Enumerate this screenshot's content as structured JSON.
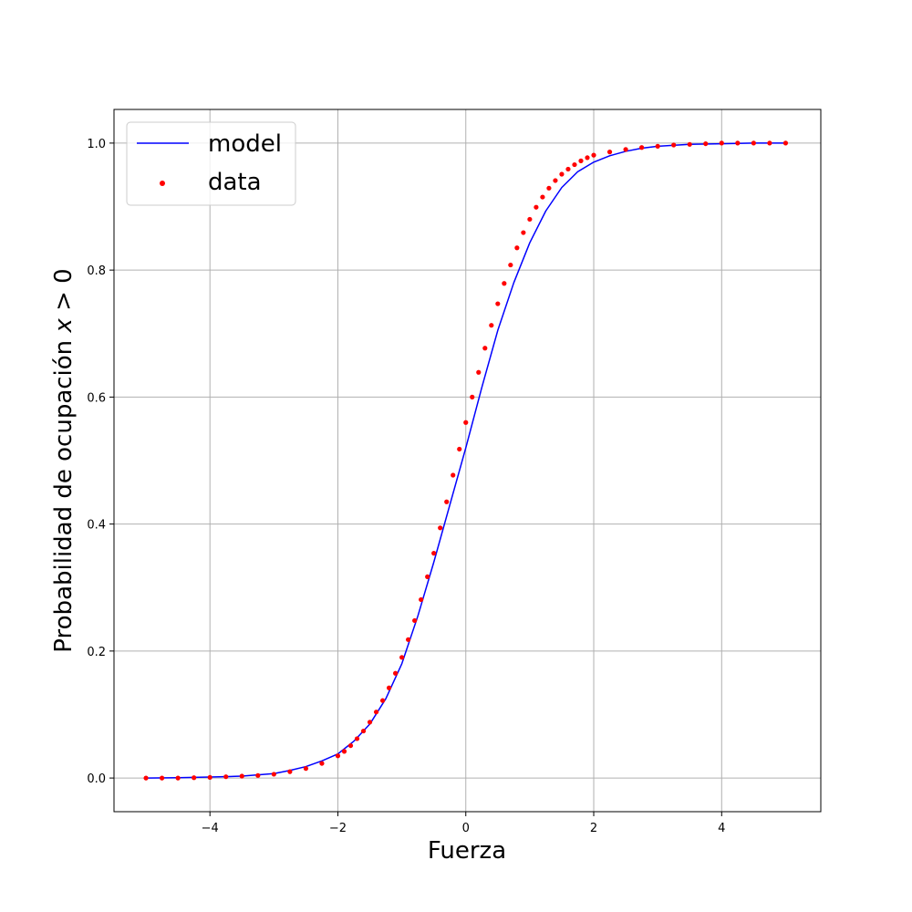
{
  "chart_data": {
    "type": "scatter",
    "title": "",
    "xlabel": "Fuerza",
    "ylabel_prefix": "Probabilidad de ocupación ",
    "ylabel_var": "x",
    "ylabel_suffix": " > 0",
    "xlim": [
      -5.5,
      5.55
    ],
    "ylim": [
      -0.053,
      1.053
    ],
    "x_ticks": [
      -4,
      -2,
      0,
      2,
      4
    ],
    "x_tick_labels": [
      "−4",
      "−2",
      "0",
      "2",
      "4"
    ],
    "y_ticks": [
      0.0,
      0.2,
      0.4,
      0.6,
      0.8,
      1.0
    ],
    "y_tick_labels": [
      "0.0",
      "0.2",
      "0.4",
      "0.6",
      "0.8",
      "1.0"
    ],
    "grid": true,
    "legend_position": "top-left",
    "colors": {
      "model": "#0000ff",
      "data": "#ff0000"
    },
    "series": [
      {
        "name": "model",
        "kind": "line",
        "x": [
          -5.0,
          -4.5,
          -4.0,
          -3.5,
          -3.0,
          -2.75,
          -2.5,
          -2.25,
          -2.0,
          -1.75,
          -1.5,
          -1.25,
          -1.0,
          -0.75,
          -0.5,
          -0.25,
          0.0,
          0.25,
          0.5,
          0.75,
          1.0,
          1.25,
          1.5,
          1.75,
          2.0,
          2.25,
          2.5,
          2.75,
          3.0,
          3.5,
          4.0,
          4.5,
          5.0
        ],
        "y": [
          0.0,
          0.0005,
          0.0015,
          0.003,
          0.007,
          0.012,
          0.018,
          0.027,
          0.038,
          0.058,
          0.085,
          0.125,
          0.18,
          0.255,
          0.34,
          0.43,
          0.52,
          0.615,
          0.705,
          0.78,
          0.843,
          0.893,
          0.93,
          0.955,
          0.97,
          0.98,
          0.987,
          0.992,
          0.995,
          0.998,
          0.999,
          1.0,
          1.0
        ]
      },
      {
        "name": "data",
        "kind": "scatter",
        "x": [
          -5.0,
          -4.75,
          -4.5,
          -4.25,
          -4.0,
          -3.75,
          -3.5,
          -3.25,
          -3.0,
          -2.75,
          -2.5,
          -2.25,
          -2.0,
          -1.9,
          -1.8,
          -1.7,
          -1.6,
          -1.5,
          -1.4,
          -1.3,
          -1.2,
          -1.1,
          -1.0,
          -0.9,
          -0.8,
          -0.7,
          -0.6,
          -0.5,
          -0.4,
          -0.3,
          -0.2,
          -0.1,
          0.0,
          0.1,
          0.2,
          0.3,
          0.4,
          0.5,
          0.6,
          0.7,
          0.8,
          0.9,
          1.0,
          1.1,
          1.2,
          1.3,
          1.4,
          1.5,
          1.6,
          1.7,
          1.8,
          1.9,
          2.0,
          2.25,
          2.5,
          2.75,
          3.0,
          3.25,
          3.5,
          3.75,
          4.0,
          4.25,
          4.5,
          4.75,
          5.0
        ],
        "y": [
          0.0,
          0.0,
          0.0,
          0.0005,
          0.001,
          0.002,
          0.003,
          0.004,
          0.006,
          0.01,
          0.015,
          0.023,
          0.035,
          0.042,
          0.051,
          0.062,
          0.074,
          0.088,
          0.104,
          0.122,
          0.142,
          0.165,
          0.19,
          0.218,
          0.248,
          0.281,
          0.317,
          0.354,
          0.394,
          0.435,
          0.477,
          0.518,
          0.56,
          0.6,
          0.639,
          0.677,
          0.713,
          0.747,
          0.779,
          0.808,
          0.835,
          0.859,
          0.88,
          0.899,
          0.915,
          0.929,
          0.941,
          0.951,
          0.959,
          0.966,
          0.972,
          0.977,
          0.981,
          0.986,
          0.99,
          0.993,
          0.995,
          0.997,
          0.998,
          0.999,
          1.0,
          1.0,
          1.0,
          1.0,
          1.0
        ]
      }
    ]
  }
}
